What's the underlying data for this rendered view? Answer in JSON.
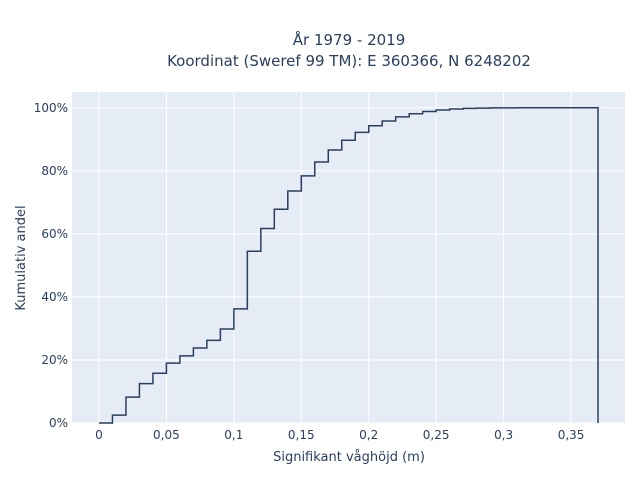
{
  "chart_data": {
    "type": "line",
    "line_shape": "step",
    "title_line1": "År 1979 - 2019",
    "title_line2": "Koordinat (Sweref 99 TM): E 360366, N 6248202",
    "xlabel": "Signifikant våghöjd (m)",
    "ylabel": "Kumulativ andel",
    "xlim": [
      -0.02,
      0.39
    ],
    "ylim": [
      0,
      1.05
    ],
    "x_ticks": [
      0,
      0.05,
      0.1,
      0.15,
      0.2,
      0.25,
      0.3,
      0.35
    ],
    "x_tick_labels": [
      "0",
      "0,05",
      "0,1",
      "0,15",
      "0,2",
      "0,25",
      "0,3",
      "0,35"
    ],
    "y_ticks": [
      0,
      0.2,
      0.4,
      0.6,
      0.8,
      1.0
    ],
    "y_tick_labels": [
      "0%",
      "20%",
      "40%",
      "60%",
      "80%",
      "100%"
    ],
    "grid": true,
    "colors": {
      "line": "#2a3f5f",
      "plot_background": "#e5ecf6",
      "grid": "#ffffff",
      "text": "#2a3f5f"
    },
    "series": [
      {
        "x": [
          0,
          0.01,
          0.02,
          0.03,
          0.04,
          0.05,
          0.06,
          0.07,
          0.08,
          0.09,
          0.1,
          0.11,
          0.12,
          0.13,
          0.14,
          0.15,
          0.16,
          0.17,
          0.18,
          0.19,
          0.2,
          0.21,
          0.22,
          0.23,
          0.24,
          0.25,
          0.26,
          0.27,
          0.28,
          0.29,
          0.3,
          0.31,
          0.32,
          0.33,
          0.34,
          0.35,
          0.36,
          0.37
        ],
        "y": [
          0.0,
          0.025,
          0.082,
          0.125,
          0.158,
          0.19,
          0.213,
          0.238,
          0.262,
          0.298,
          0.362,
          0.545,
          0.617,
          0.678,
          0.736,
          0.784,
          0.828,
          0.866,
          0.897,
          0.922,
          0.943,
          0.958,
          0.971,
          0.981,
          0.988,
          0.993,
          0.996,
          0.998,
          0.999,
          0.9995,
          0.9998,
          0.9999,
          1.0,
          1.0,
          1.0,
          1.0,
          1.0,
          1.0
        ]
      }
    ],
    "final_drop_x": 0.37
  }
}
